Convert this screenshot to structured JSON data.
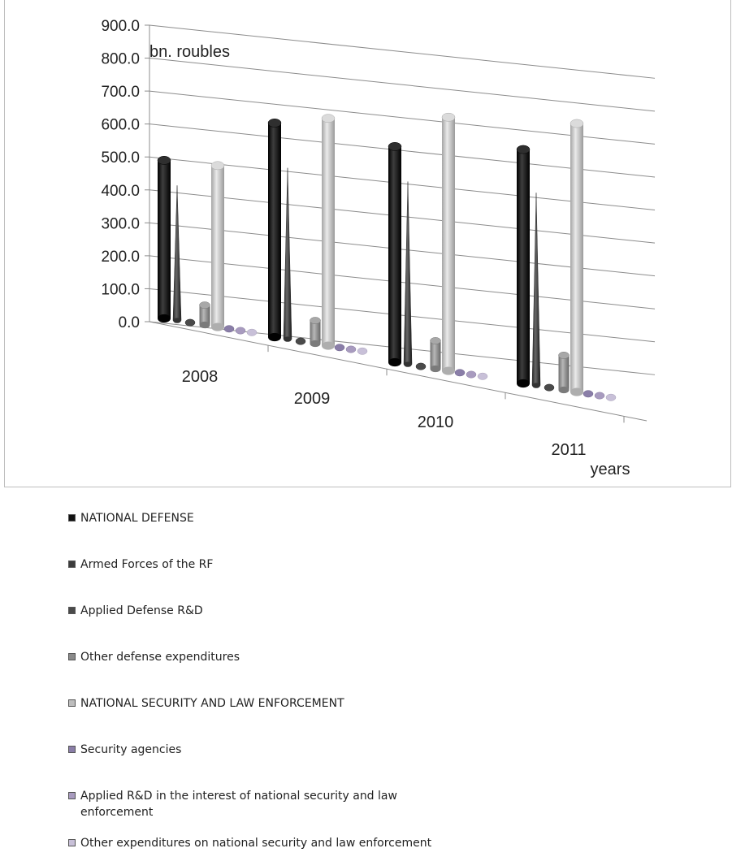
{
  "chart_data": {
    "type": "bar",
    "style": "3d-cones-cylinders",
    "unit_label": "bn. roubles",
    "xlabel": "years",
    "ylabel": "",
    "ylim": [
      0,
      900
    ],
    "yticks": [
      "0.0",
      "100.0",
      "200.0",
      "300.0",
      "400.0",
      "500.0",
      "600.0",
      "700.0",
      "800.0",
      "900.0"
    ],
    "grid": true,
    "legend_position": "bottom",
    "categories": [
      "2008",
      "2009",
      "2010",
      "2011"
    ],
    "series": [
      {
        "name": "NATIONAL DEFENSE",
        "color": "#111111",
        "shape": "cylinder",
        "values": [
          480,
          650,
          655,
          710
        ]
      },
      {
        "name": "Armed Forces of the RF",
        "color": "#3c3c3c",
        "shape": "cone",
        "values": [
          410,
          520,
          555,
          585
        ]
      },
      {
        "name": "Applied Defense R&D",
        "color": "#4a4a4a",
        "shape": "cone",
        "values": [
          5,
          5,
          5,
          5
        ]
      },
      {
        "name": "Other defense expenditures",
        "color": "#8a8a8a",
        "shape": "cylinder",
        "values": [
          60,
          70,
          85,
          105
        ]
      },
      {
        "name": "NATIONAL SECURITY  AND LAW ENFORCEMENT",
        "color": "#bdbdbd",
        "shape": "cylinder",
        "values": [
          490,
          690,
          770,
          815
        ]
      },
      {
        "name": "Security agencies",
        "color": "#8a7ea8",
        "shape": "cylinder",
        "values": [
          2,
          2,
          2,
          2
        ]
      },
      {
        "name": "Applied R&D in the interest of national  security and law enforcement",
        "color": "#a89bbf",
        "shape": "cylinder",
        "values": [
          1,
          1,
          1,
          1
        ]
      },
      {
        "name": "Other expenditures on national security and law enforcement",
        "color": "#c8c0d8",
        "shape": "cylinder",
        "values": [
          1,
          1,
          1,
          1
        ]
      }
    ]
  }
}
